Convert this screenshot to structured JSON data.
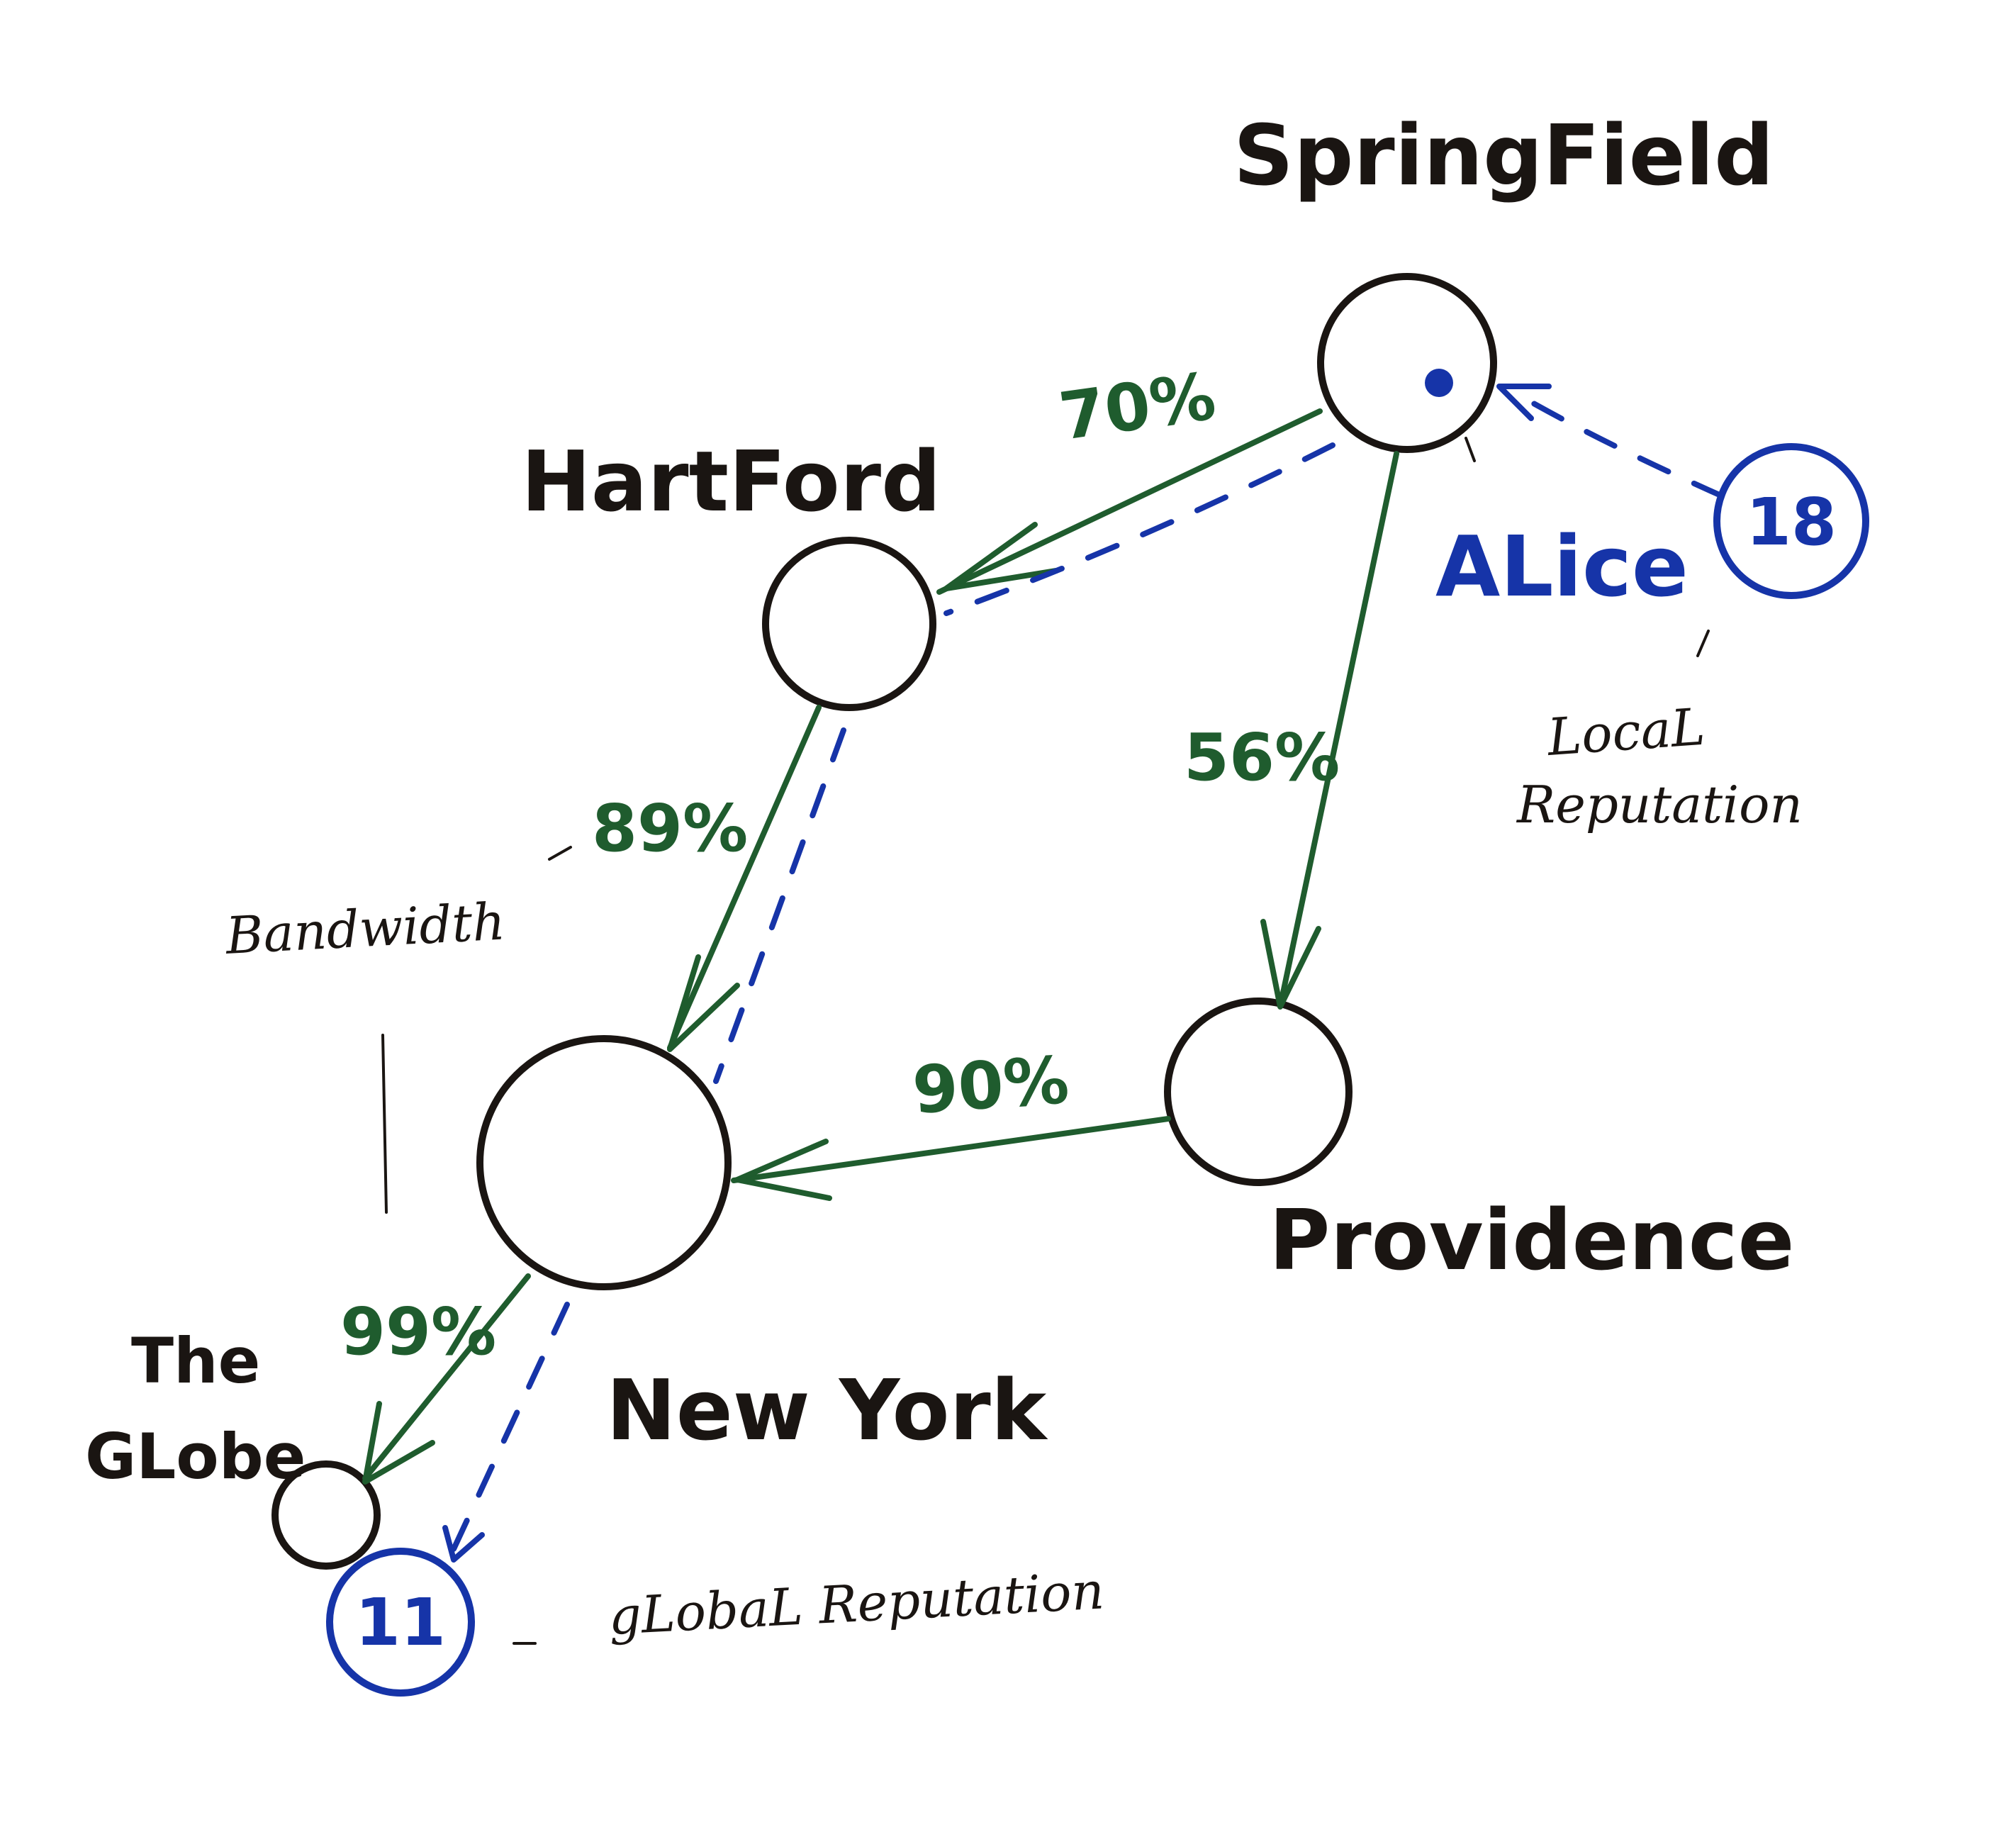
{
  "nodes": {
    "springfield": "SpringField",
    "hartford": "HartFord",
    "providence": "Providence",
    "new_york": "New York",
    "the_globe": [
      "The",
      "GLobe"
    ]
  },
  "edges": {
    "springfield_hartford": "70%",
    "springfield_providence": "56%",
    "hartford_new_york": "89%",
    "providence_new_york": "90%",
    "new_york_the_globe": "99%"
  },
  "alice": {
    "label": "ALice",
    "local_reputation_value": "18",
    "global_reputation_value": "11"
  },
  "annotations": {
    "bandwidth": "Bandwidth",
    "local_reputation": [
      "LocaL",
      "Reputation"
    ],
    "global_reputation": "gLobaL Reputation"
  },
  "colors": {
    "nodes": "#1a1512",
    "bandwidth_edges": "#1f5c2e",
    "reputation_path": "#1634a8"
  }
}
